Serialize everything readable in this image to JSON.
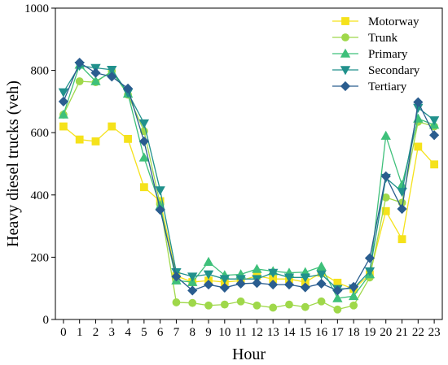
{
  "chart_data": {
    "type": "line",
    "xlabel": "Hour",
    "ylabel": "Heavy diesel trucks (veh)",
    "xlim": [
      -0.5,
      23.5
    ],
    "ylim": [
      0,
      1000
    ],
    "x": [
      0,
      1,
      2,
      3,
      4,
      5,
      6,
      7,
      8,
      9,
      10,
      11,
      12,
      13,
      14,
      15,
      16,
      17,
      18,
      19,
      20,
      21,
      22,
      23
    ],
    "x_tick_labels": [
      "0",
      "1",
      "2",
      "3",
      "4",
      "5",
      "6",
      "7",
      "8",
      "9",
      "10",
      "11",
      "12",
      "13",
      "14",
      "15",
      "16",
      "17",
      "18",
      "19",
      "20",
      "21",
      "22",
      "23"
    ],
    "y_ticks": [
      0,
      200,
      400,
      600,
      800,
      1000
    ],
    "y_tick_labels": [
      "0",
      "200",
      "400",
      "600",
      "800",
      "1000"
    ],
    "grid": false,
    "legend_position": "top-right",
    "series": [
      {
        "name": "Motorway",
        "color": "#f5e21b",
        "marker": "square",
        "values": [
          620,
          578,
          572,
          620,
          580,
          425,
          380,
          140,
          120,
          125,
          120,
          125,
          140,
          130,
          130,
          120,
          150,
          118,
          98,
          145,
          348,
          258,
          555,
          498
        ]
      },
      {
        "name": "Trunk",
        "color": "#9fd84a",
        "marker": "circle",
        "values": [
          658,
          765,
          762,
          798,
          722,
          605,
          370,
          55,
          53,
          45,
          48,
          58,
          45,
          38,
          48,
          40,
          58,
          32,
          45,
          135,
          392,
          375,
          635,
          620
        ]
      },
      {
        "name": "Primary",
        "color": "#3ec07a",
        "marker": "triangle-up",
        "values": [
          658,
          818,
          765,
          795,
          725,
          520,
          365,
          125,
          120,
          185,
          142,
          145,
          162,
          155,
          150,
          152,
          170,
          68,
          75,
          145,
          590,
          432,
          645,
          625
        ]
      },
      {
        "name": "Secondary",
        "color": "#21918c",
        "marker": "triangle-down",
        "values": [
          730,
          815,
          808,
          802,
          728,
          630,
          415,
          152,
          138,
          145,
          130,
          130,
          130,
          150,
          135,
          135,
          145,
          98,
          100,
          155,
          455,
          410,
          680,
          640
        ]
      },
      {
        "name": "Tertiary",
        "color": "#2a5d8f",
        "marker": "diamond",
        "values": [
          700,
          825,
          792,
          780,
          742,
          572,
          352,
          138,
          93,
          112,
          102,
          115,
          117,
          112,
          112,
          103,
          115,
          93,
          105,
          197,
          460,
          355,
          698,
          592
        ]
      }
    ]
  }
}
